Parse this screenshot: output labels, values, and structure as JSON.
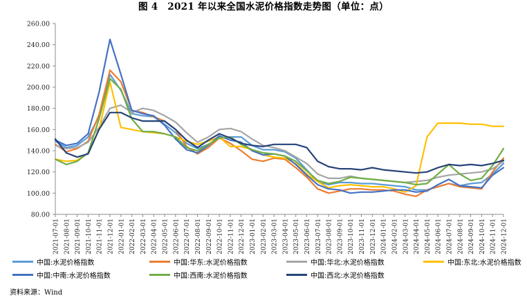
{
  "chart_data": {
    "type": "line",
    "title": "图 4　2021 年以来全国水泥价格指数走势图（单位：点）",
    "ylim": [
      80,
      260
    ],
    "yticks": [
      "80.00",
      "100.00",
      "120.00",
      "140.00",
      "160.00",
      "180.00",
      "200.00",
      "220.00",
      "240.00",
      "260.00"
    ],
    "grid": false,
    "legend_position": "bottom",
    "categories": [
      "2021-07-01",
      "2021-08-01",
      "2021-09-01",
      "2021-10-01",
      "2021-11-01",
      "2021-12-01",
      "2022-01-01",
      "2022-02-01",
      "2022-03-01",
      "2022-04-01",
      "2022-05-01",
      "2022-06-01",
      "2022-07-01",
      "2022-08-01",
      "2022-09-01",
      "2022-10-01",
      "2022-11-01",
      "2022-12-01",
      "2023-01-01",
      "2023-02-01",
      "2023-03-01",
      "2023-04-01",
      "2023-05-01",
      "2023-06-01",
      "2023-07-01",
      "2023-08-01",
      "2023-09-01",
      "2023-10-01",
      "2023-11-01",
      "2023-12-01",
      "2024-01-01",
      "2024-02-01",
      "2024-03-01",
      "2024-04-01",
      "2024-05-01",
      "2024-06-01",
      "2024-07-01",
      "2024-08-01",
      "2024-09-01",
      "2024-10-01",
      "2024-11-01",
      "2024-12-01"
    ],
    "series": [
      {
        "name": "中国:水泥价格指数",
        "color": "#5b9bd5",
        "values": [
          149,
          143,
          145,
          153,
          172,
          212,
          197,
          175,
          173,
          172,
          165,
          157,
          147,
          142,
          146,
          152,
          153,
          153,
          145,
          141,
          141,
          139,
          133,
          122,
          111,
          108,
          110,
          110,
          109,
          109,
          108,
          107,
          106,
          103,
          103,
          106,
          109,
          107,
          109,
          110,
          118,
          128
        ]
      },
      {
        "name": "中国:华东:水泥价格指数",
        "color": "#ed7d31",
        "values": [
          146,
          139,
          142,
          149,
          174,
          216,
          205,
          178,
          176,
          172,
          168,
          160,
          144,
          137,
          143,
          152,
          147,
          140,
          132,
          130,
          133,
          132,
          124,
          115,
          104,
          100,
          102,
          104,
          104,
          103,
          103,
          102,
          99,
          97,
          103,
          106,
          109,
          106,
          105,
          104,
          120,
          133
        ]
      },
      {
        "name": "中国:华北:水泥价格指数",
        "color": "#a5a5a5",
        "values": [
          145,
          142,
          143,
          148,
          162,
          180,
          183,
          176,
          180,
          178,
          173,
          167,
          157,
          148,
          153,
          160,
          161,
          158,
          151,
          145,
          143,
          140,
          134,
          128,
          118,
          114,
          114,
          116,
          114,
          113,
          112,
          111,
          110,
          111,
          112,
          115,
          117,
          118,
          119,
          120,
          123,
          130
        ]
      },
      {
        "name": "中国:东北:水泥价格指数",
        "color": "#ffc000",
        "values": [
          132,
          130,
          131,
          138,
          160,
          205,
          162,
          160,
          158,
          157,
          156,
          153,
          149,
          146,
          149,
          153,
          144,
          144,
          141,
          136,
          134,
          133,
          128,
          118,
          111,
          105,
          107,
          108,
          107,
          106,
          106,
          104,
          101,
          107,
          153,
          166,
          166,
          166,
          165,
          165,
          163,
          163
        ]
      },
      {
        "name": "中国:中南:水泥价格指数",
        "color": "#4472c4",
        "values": [
          150,
          145,
          147,
          156,
          195,
          245,
          212,
          178,
          175,
          173,
          164,
          151,
          141,
          138,
          145,
          154,
          150,
          148,
          140,
          136,
          137,
          135,
          127,
          117,
          108,
          104,
          103,
          100,
          101,
          101,
          102,
          103,
          103,
          101,
          102,
          108,
          113,
          107,
          106,
          105,
          117,
          124
        ]
      },
      {
        "name": "中国:西南:水泥价格指数",
        "color": "#70ad47",
        "values": [
          132,
          127,
          130,
          138,
          170,
          208,
          198,
          170,
          158,
          158,
          156,
          153,
          143,
          140,
          146,
          152,
          153,
          146,
          141,
          138,
          137,
          135,
          130,
          121,
          112,
          109,
          111,
          115,
          114,
          113,
          112,
          111,
          110,
          108,
          109,
          118,
          127,
          118,
          112,
          114,
          126,
          142
        ]
      },
      {
        "name": "中国:西北:水泥价格指数",
        "color": "#264478",
        "values": [
          151,
          138,
          134,
          137,
          160,
          176,
          176,
          171,
          168,
          168,
          168,
          160,
          150,
          143,
          150,
          156,
          152,
          147,
          145,
          144,
          146,
          146,
          146,
          143,
          130,
          125,
          123,
          123,
          122,
          124,
          122,
          121,
          120,
          119,
          120,
          124,
          127,
          126,
          127,
          126,
          128,
          131
        ]
      }
    ]
  },
  "source_note": "资料来源：Wind"
}
